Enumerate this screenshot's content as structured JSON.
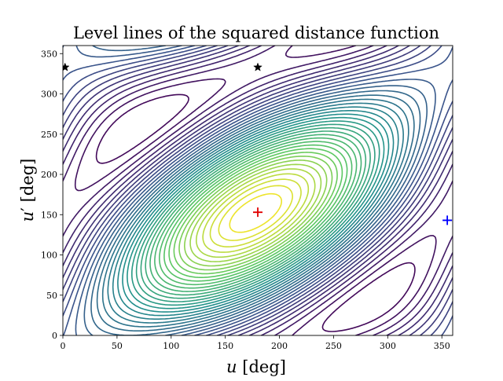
{
  "chart_data": {
    "type": "contour",
    "title": "Level lines of the squared distance function",
    "xlabel_var": "u",
    "xlabel_unit": "[deg]",
    "ylabel_var": "u",
    "ylabel_prime": "′",
    "ylabel_unit": "[deg]",
    "xlim": [
      0,
      360
    ],
    "ylim": [
      0,
      360
    ],
    "x_ticks": [
      0,
      50,
      100,
      150,
      200,
      250,
      300,
      350
    ],
    "y_ticks": [
      0,
      50,
      100,
      150,
      200,
      250,
      300,
      350
    ],
    "x_tick_labels": [
      "0",
      "50",
      "100",
      "150",
      "200",
      "250",
      "300",
      "350"
    ],
    "y_tick_labels": [
      "0",
      "50",
      "100",
      "150",
      "200",
      "250",
      "300",
      "350"
    ],
    "grid": false,
    "colormap": "viridis",
    "markers": [
      {
        "type": "plus",
        "x": 180,
        "y": 153,
        "color": "#e00000"
      },
      {
        "type": "plus",
        "x": 355,
        "y": 143,
        "color": "#0000ff"
      },
      {
        "type": "star",
        "x": 180,
        "y": 333,
        "color": "#000000"
      },
      {
        "type": "star",
        "x": 2,
        "y": 333,
        "color": "#000000"
      }
    ]
  }
}
